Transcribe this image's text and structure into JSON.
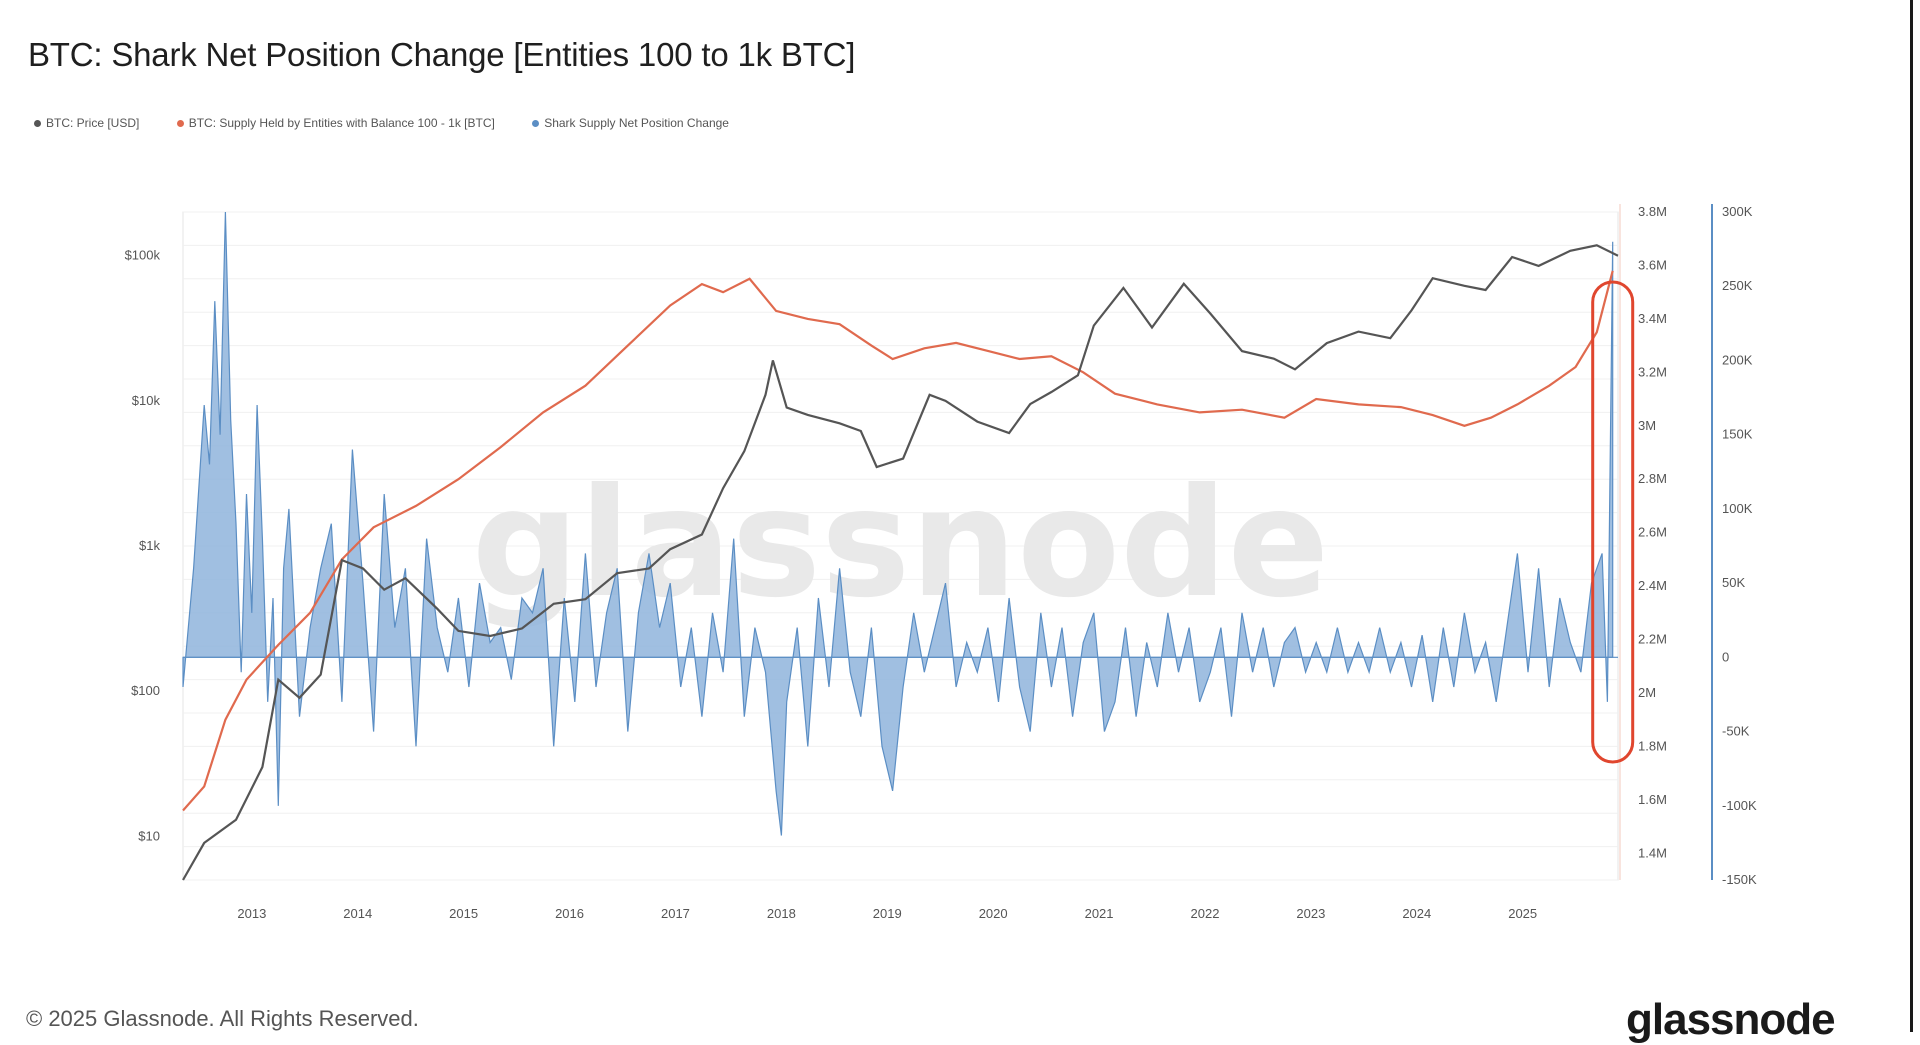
{
  "header": {
    "title": "BTC: Shark Net Position Change [Entities 100 to 1k BTC]"
  },
  "footer": {
    "copyright": "© 2025 Glassnode. All Rights Reserved.",
    "logo": "glassnode"
  },
  "watermark": "glassnode",
  "chart_data": {
    "type": "line",
    "title": "BTC: Shark Net Position Change [Entities 100 to 1k BTC]",
    "legend_placement": "top-left",
    "grid": true,
    "x_ticks": [
      "2013",
      "2014",
      "2015",
      "2016",
      "2017",
      "2018",
      "2019",
      "2020",
      "2021",
      "2022",
      "2023",
      "2024",
      "2025"
    ],
    "x_range": [
      2012.4,
      2025.95
    ],
    "axes": {
      "price": {
        "scale": "log",
        "range": [
          5,
          200000
        ],
        "ticks": [
          10,
          100,
          1000,
          10000,
          100000
        ],
        "tick_labels": [
          "$10",
          "$100",
          "$1k",
          "$10k",
          "$100k"
        ]
      },
      "supply": {
        "range": [
          1300000,
          3800000
        ],
        "ticks": [
          1400000,
          1600000,
          1800000,
          2000000,
          2200000,
          2400000,
          2600000,
          2800000,
          3000000,
          3200000,
          3400000,
          3600000,
          3800000
        ],
        "tick_labels": [
          "1.4M",
          "1.6M",
          "1.8M",
          "2M",
          "2.2M",
          "2.4M",
          "2.6M",
          "2.8M",
          "3M",
          "3.2M",
          "3.4M",
          "3.6M",
          "3.8M"
        ]
      },
      "net_change": {
        "range": [
          -150000,
          300000
        ],
        "ticks": [
          -150000,
          -100000,
          -50000,
          0,
          50000,
          100000,
          150000,
          200000,
          250000,
          300000
        ],
        "tick_labels": [
          "-150K",
          "-100K",
          "-50K",
          "0",
          "50K",
          "100K",
          "150K",
          "200K",
          "250K",
          "300K"
        ]
      }
    },
    "series": [
      {
        "name": "BTC: Price [USD]",
        "axis": "price",
        "color": "#555555",
        "points": [
          [
            2012.4,
            5
          ],
          [
            2012.6,
            9
          ],
          [
            2012.9,
            13
          ],
          [
            2013.15,
            30
          ],
          [
            2013.3,
            120
          ],
          [
            2013.5,
            90
          ],
          [
            2013.7,
            130
          ],
          [
            2013.9,
            800
          ],
          [
            2014.1,
            700
          ],
          [
            2014.3,
            500
          ],
          [
            2014.5,
            600
          ],
          [
            2014.8,
            370
          ],
          [
            2015.0,
            260
          ],
          [
            2015.3,
            240
          ],
          [
            2015.6,
            270
          ],
          [
            2015.9,
            400
          ],
          [
            2016.2,
            430
          ],
          [
            2016.5,
            650
          ],
          [
            2016.8,
            700
          ],
          [
            2017.0,
            950
          ],
          [
            2017.3,
            1200
          ],
          [
            2017.5,
            2500
          ],
          [
            2017.7,
            4500
          ],
          [
            2017.9,
            11000
          ],
          [
            2017.97,
            19000
          ],
          [
            2018.1,
            9000
          ],
          [
            2018.3,
            8000
          ],
          [
            2018.6,
            7000
          ],
          [
            2018.8,
            6200
          ],
          [
            2018.95,
            3500
          ],
          [
            2019.2,
            4000
          ],
          [
            2019.45,
            11000
          ],
          [
            2019.6,
            10000
          ],
          [
            2019.9,
            7200
          ],
          [
            2020.2,
            6000
          ],
          [
            2020.4,
            9500
          ],
          [
            2020.6,
            11500
          ],
          [
            2020.85,
            15000
          ],
          [
            2021.0,
            33000
          ],
          [
            2021.28,
            60000
          ],
          [
            2021.55,
            32000
          ],
          [
            2021.85,
            64000
          ],
          [
            2022.1,
            40000
          ],
          [
            2022.4,
            22000
          ],
          [
            2022.7,
            19500
          ],
          [
            2022.9,
            16500
          ],
          [
            2023.2,
            25000
          ],
          [
            2023.5,
            30000
          ],
          [
            2023.8,
            27000
          ],
          [
            2024.0,
            42000
          ],
          [
            2024.2,
            70000
          ],
          [
            2024.5,
            62000
          ],
          [
            2024.7,
            58000
          ],
          [
            2024.95,
            98000
          ],
          [
            2025.2,
            85000
          ],
          [
            2025.5,
            108000
          ],
          [
            2025.75,
            118000
          ],
          [
            2025.95,
            100000
          ]
        ]
      },
      {
        "name": "BTC: Supply Held by Entities with Balance 100 - 1k [BTC]",
        "axis": "supply",
        "color": "#e06a4e",
        "points": [
          [
            2012.4,
            1560000
          ],
          [
            2012.6,
            1650000
          ],
          [
            2012.8,
            1900000
          ],
          [
            2013.0,
            2050000
          ],
          [
            2013.3,
            2180000
          ],
          [
            2013.6,
            2300000
          ],
          [
            2013.9,
            2500000
          ],
          [
            2014.2,
            2620000
          ],
          [
            2014.6,
            2700000
          ],
          [
            2015.0,
            2800000
          ],
          [
            2015.4,
            2920000
          ],
          [
            2015.8,
            3050000
          ],
          [
            2016.2,
            3150000
          ],
          [
            2016.6,
            3300000
          ],
          [
            2017.0,
            3450000
          ],
          [
            2017.3,
            3530000
          ],
          [
            2017.5,
            3500000
          ],
          [
            2017.75,
            3550000
          ],
          [
            2018.0,
            3430000
          ],
          [
            2018.3,
            3400000
          ],
          [
            2018.6,
            3380000
          ],
          [
            2018.9,
            3300000
          ],
          [
            2019.1,
            3250000
          ],
          [
            2019.4,
            3290000
          ],
          [
            2019.7,
            3310000
          ],
          [
            2020.0,
            3280000
          ],
          [
            2020.3,
            3250000
          ],
          [
            2020.6,
            3260000
          ],
          [
            2020.9,
            3200000
          ],
          [
            2021.2,
            3120000
          ],
          [
            2021.6,
            3080000
          ],
          [
            2022.0,
            3050000
          ],
          [
            2022.4,
            3060000
          ],
          [
            2022.8,
            3030000
          ],
          [
            2023.1,
            3100000
          ],
          [
            2023.5,
            3080000
          ],
          [
            2023.9,
            3070000
          ],
          [
            2024.2,
            3040000
          ],
          [
            2024.5,
            3000000
          ],
          [
            2024.75,
            3030000
          ],
          [
            2025.0,
            3080000
          ],
          [
            2025.3,
            3150000
          ],
          [
            2025.55,
            3220000
          ],
          [
            2025.75,
            3350000
          ],
          [
            2025.9,
            3580000
          ]
        ]
      },
      {
        "name": "Shark Supply Net Position Change",
        "axis": "net_change",
        "color": "#5b8ec4",
        "points": [
          [
            2012.4,
            -20000
          ],
          [
            2012.5,
            60000
          ],
          [
            2012.6,
            170000
          ],
          [
            2012.65,
            130000
          ],
          [
            2012.7,
            240000
          ],
          [
            2012.75,
            150000
          ],
          [
            2012.8,
            300000
          ],
          [
            2012.85,
            160000
          ],
          [
            2012.9,
            90000
          ],
          [
            2012.95,
            -10000
          ],
          [
            2013.0,
            110000
          ],
          [
            2013.05,
            30000
          ],
          [
            2013.1,
            170000
          ],
          [
            2013.15,
            80000
          ],
          [
            2013.2,
            -30000
          ],
          [
            2013.25,
            40000
          ],
          [
            2013.3,
            -100000
          ],
          [
            2013.35,
            60000
          ],
          [
            2013.4,
            100000
          ],
          [
            2013.5,
            -40000
          ],
          [
            2013.6,
            20000
          ],
          [
            2013.7,
            60000
          ],
          [
            2013.8,
            90000
          ],
          [
            2013.9,
            -30000
          ],
          [
            2014.0,
            140000
          ],
          [
            2014.1,
            50000
          ],
          [
            2014.2,
            -50000
          ],
          [
            2014.3,
            110000
          ],
          [
            2014.4,
            20000
          ],
          [
            2014.5,
            60000
          ],
          [
            2014.6,
            -60000
          ],
          [
            2014.7,
            80000
          ],
          [
            2014.8,
            20000
          ],
          [
            2014.9,
            -10000
          ],
          [
            2015.0,
            40000
          ],
          [
            2015.1,
            -20000
          ],
          [
            2015.2,
            50000
          ],
          [
            2015.3,
            10000
          ],
          [
            2015.4,
            20000
          ],
          [
            2015.5,
            -15000
          ],
          [
            2015.6,
            40000
          ],
          [
            2015.7,
            30000
          ],
          [
            2015.8,
            60000
          ],
          [
            2015.9,
            -60000
          ],
          [
            2016.0,
            40000
          ],
          [
            2016.1,
            -30000
          ],
          [
            2016.2,
            70000
          ],
          [
            2016.3,
            -20000
          ],
          [
            2016.4,
            30000
          ],
          [
            2016.5,
            60000
          ],
          [
            2016.6,
            -50000
          ],
          [
            2016.7,
            30000
          ],
          [
            2016.8,
            70000
          ],
          [
            2016.9,
            20000
          ],
          [
            2017.0,
            50000
          ],
          [
            2017.1,
            -20000
          ],
          [
            2017.2,
            20000
          ],
          [
            2017.3,
            -40000
          ],
          [
            2017.4,
            30000
          ],
          [
            2017.5,
            -10000
          ],
          [
            2017.6,
            80000
          ],
          [
            2017.7,
            -40000
          ],
          [
            2017.8,
            20000
          ],
          [
            2017.9,
            -10000
          ],
          [
            2018.0,
            -90000
          ],
          [
            2018.05,
            -120000
          ],
          [
            2018.1,
            -30000
          ],
          [
            2018.2,
            20000
          ],
          [
            2018.3,
            -60000
          ],
          [
            2018.4,
            40000
          ],
          [
            2018.5,
            -20000
          ],
          [
            2018.6,
            60000
          ],
          [
            2018.7,
            -10000
          ],
          [
            2018.8,
            -40000
          ],
          [
            2018.9,
            20000
          ],
          [
            2019.0,
            -60000
          ],
          [
            2019.1,
            -90000
          ],
          [
            2019.2,
            -20000
          ],
          [
            2019.3,
            30000
          ],
          [
            2019.4,
            -10000
          ],
          [
            2019.5,
            20000
          ],
          [
            2019.6,
            50000
          ],
          [
            2019.7,
            -20000
          ],
          [
            2019.8,
            10000
          ],
          [
            2019.9,
            -10000
          ],
          [
            2020.0,
            20000
          ],
          [
            2020.1,
            -30000
          ],
          [
            2020.2,
            40000
          ],
          [
            2020.3,
            -20000
          ],
          [
            2020.4,
            -50000
          ],
          [
            2020.5,
            30000
          ],
          [
            2020.6,
            -20000
          ],
          [
            2020.7,
            20000
          ],
          [
            2020.8,
            -40000
          ],
          [
            2020.9,
            10000
          ],
          [
            2021.0,
            30000
          ],
          [
            2021.1,
            -50000
          ],
          [
            2021.2,
            -30000
          ],
          [
            2021.3,
            20000
          ],
          [
            2021.4,
            -40000
          ],
          [
            2021.5,
            10000
          ],
          [
            2021.6,
            -20000
          ],
          [
            2021.7,
            30000
          ],
          [
            2021.8,
            -10000
          ],
          [
            2021.9,
            20000
          ],
          [
            2022.0,
            -30000
          ],
          [
            2022.1,
            -10000
          ],
          [
            2022.2,
            20000
          ],
          [
            2022.3,
            -40000
          ],
          [
            2022.4,
            30000
          ],
          [
            2022.5,
            -10000
          ],
          [
            2022.6,
            20000
          ],
          [
            2022.7,
            -20000
          ],
          [
            2022.8,
            10000
          ],
          [
            2022.9,
            20000
          ],
          [
            2023.0,
            -10000
          ],
          [
            2023.1,
            10000
          ],
          [
            2023.2,
            -10000
          ],
          [
            2023.3,
            20000
          ],
          [
            2023.4,
            -10000
          ],
          [
            2023.5,
            10000
          ],
          [
            2023.6,
            -10000
          ],
          [
            2023.7,
            20000
          ],
          [
            2023.8,
            -10000
          ],
          [
            2023.9,
            10000
          ],
          [
            2024.0,
            -20000
          ],
          [
            2024.1,
            15000
          ],
          [
            2024.2,
            -30000
          ],
          [
            2024.3,
            20000
          ],
          [
            2024.4,
            -20000
          ],
          [
            2024.5,
            30000
          ],
          [
            2024.6,
            -10000
          ],
          [
            2024.7,
            10000
          ],
          [
            2024.8,
            -30000
          ],
          [
            2024.9,
            20000
          ],
          [
            2025.0,
            70000
          ],
          [
            2025.1,
            -10000
          ],
          [
            2025.2,
            60000
          ],
          [
            2025.3,
            -20000
          ],
          [
            2025.4,
            40000
          ],
          [
            2025.5,
            10000
          ],
          [
            2025.6,
            -10000
          ],
          [
            2025.7,
            50000
          ],
          [
            2025.8,
            70000
          ],
          [
            2025.85,
            -30000
          ],
          [
            2025.9,
            280000
          ]
        ]
      }
    ],
    "annotations": [
      {
        "type": "highlight-oval",
        "color": "#e0462e",
        "x_range": [
          2025.8,
          2026.0
        ]
      }
    ]
  }
}
